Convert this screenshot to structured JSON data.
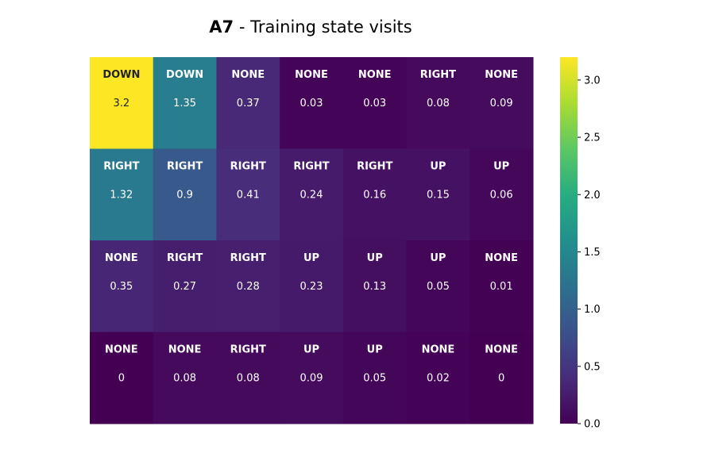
{
  "title": {
    "bold": "A7",
    "rest": " - Training state visits"
  },
  "chart_data": {
    "type": "heatmap",
    "colormap": "viridis",
    "grid": false,
    "legend": "colorbar-right",
    "rows": 4,
    "cols": 7,
    "actions": [
      [
        "DOWN",
        "DOWN",
        "NONE",
        "NONE",
        "NONE",
        "RIGHT",
        "NONE"
      ],
      [
        "RIGHT",
        "RIGHT",
        "RIGHT",
        "RIGHT",
        "RIGHT",
        "UP",
        "UP"
      ],
      [
        "NONE",
        "RIGHT",
        "RIGHT",
        "UP",
        "UP",
        "UP",
        "NONE"
      ],
      [
        "NONE",
        "NONE",
        "RIGHT",
        "UP",
        "UP",
        "NONE",
        "NONE"
      ]
    ],
    "values": [
      [
        3.2,
        1.35,
        0.37,
        0.03,
        0.03,
        0.08,
        0.09
      ],
      [
        1.32,
        0.9,
        0.41,
        0.24,
        0.16,
        0.15,
        0.06
      ],
      [
        0.35,
        0.27,
        0.28,
        0.23,
        0.13,
        0.05,
        0.01
      ],
      [
        0,
        0.08,
        0.08,
        0.09,
        0.05,
        0.02,
        0
      ]
    ],
    "colorbar": {
      "range": [
        0.0,
        3.2
      ],
      "ticks": [
        0.0,
        0.5,
        1.0,
        1.5,
        2.0,
        2.5,
        3.0
      ],
      "tick_labels": [
        "0.0",
        "0.5",
        "1.0",
        "1.5",
        "2.0",
        "2.5",
        "3.0"
      ]
    }
  }
}
